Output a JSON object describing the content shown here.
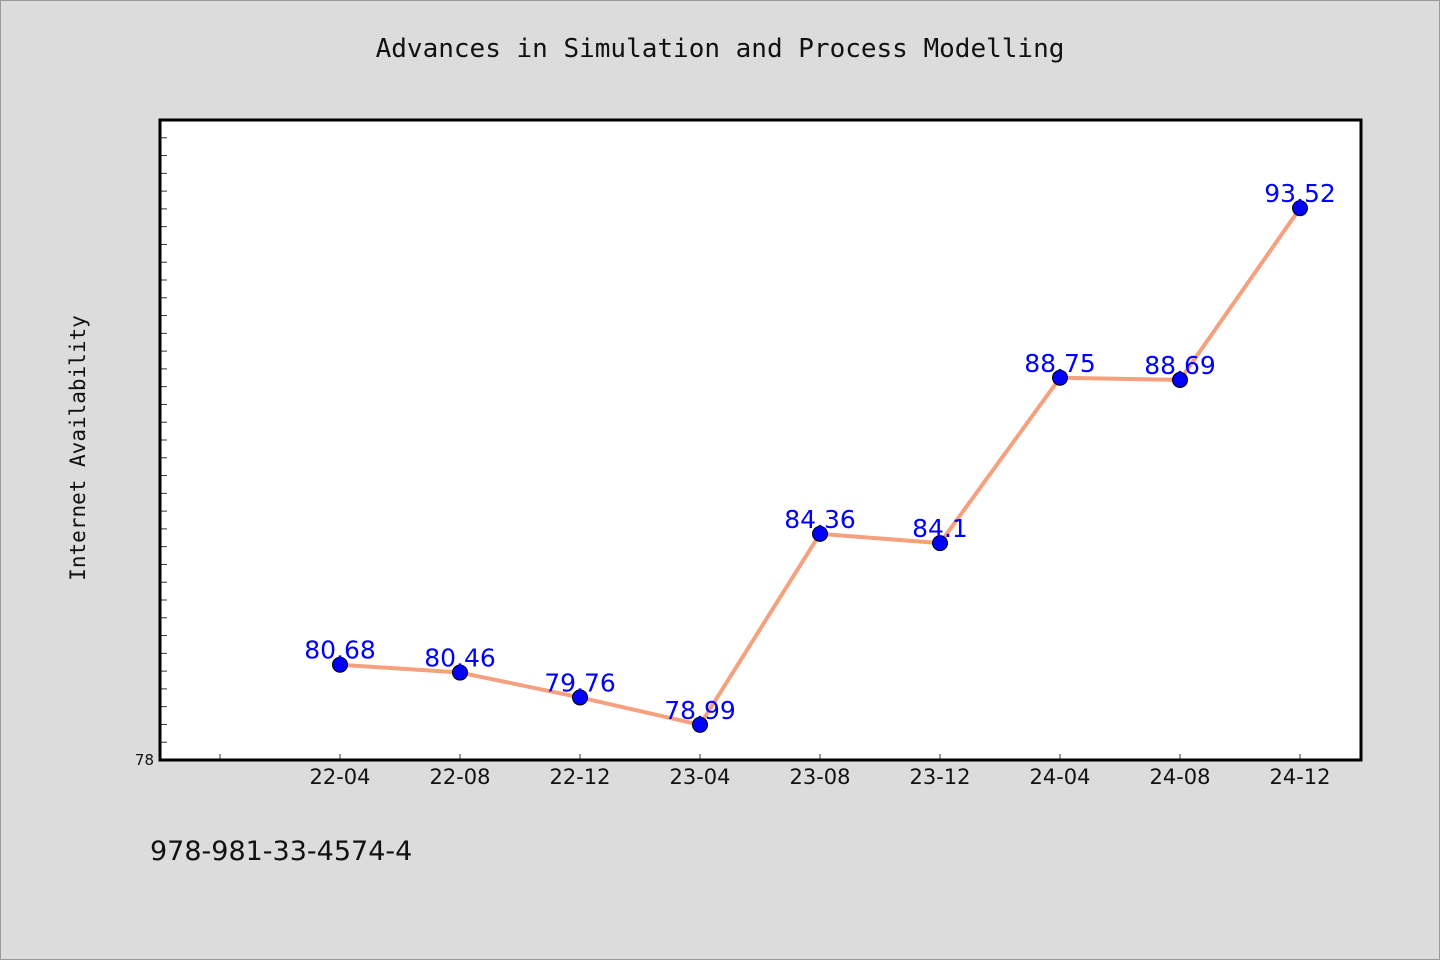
{
  "chart_data": {
    "type": "line",
    "title": "Advances in Simulation and Process Modelling",
    "xlabel": "",
    "ylabel": "Internet Availability",
    "categories": [
      "22-04",
      "22-08",
      "22-12",
      "23-04",
      "23-08",
      "23-12",
      "24-04",
      "24-08",
      "24-12"
    ],
    "series": [
      {
        "values": [
          80.68,
          80.46,
          79.76,
          78.99,
          84.36,
          84.1,
          88.75,
          88.69,
          93.52
        ],
        "labels": [
          "80.68",
          "80.46",
          "79.76",
          "78.99",
          "84.36",
          "84.1",
          "88.75",
          "88.69",
          "93.52"
        ]
      }
    ],
    "ylim": [
      78,
      96
    ],
    "ytick_labels": [
      "78"
    ],
    "grid": false,
    "legend": "none",
    "line_color": "#f5a07f",
    "marker_color": "#0000ff",
    "label_color": "#0000ff"
  },
  "footer": {
    "isbn": "978-981-33-4574-4"
  }
}
